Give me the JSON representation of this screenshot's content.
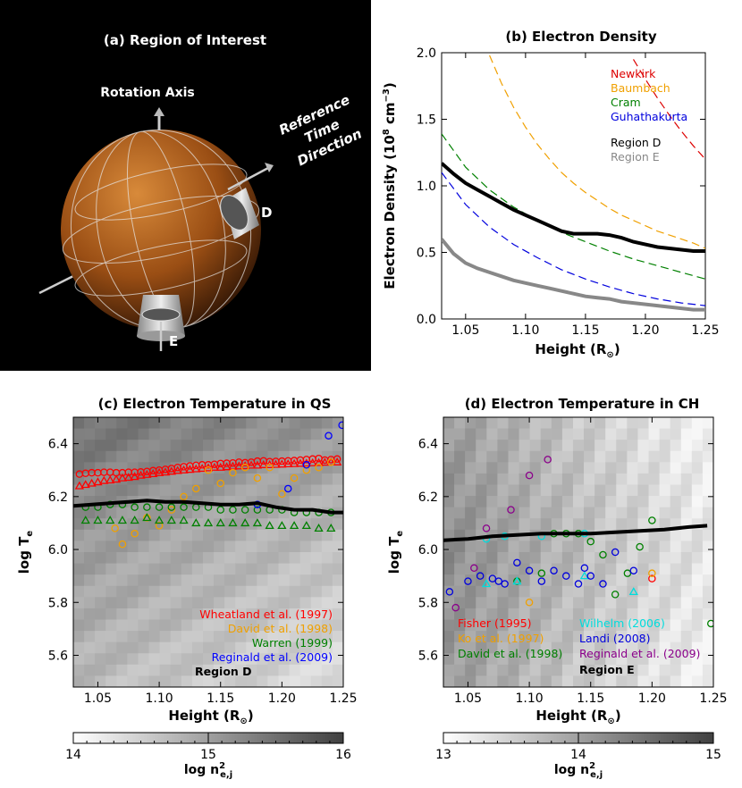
{
  "panels": {
    "a": {
      "title": "(a) Region of Interest",
      "rotation_axis": "Rotation Axis",
      "ref_dir": [
        "Reference",
        "Time",
        "Direction"
      ],
      "label_d": "D",
      "label_e": "E"
    }
  },
  "chart_data": [
    {
      "id": "b",
      "type": "line",
      "title": "(b) Electron Density",
      "xlabel": "Height (R",
      "xlabel_sub": "⊙",
      "xlabel_end": ")",
      "ylabel": "Electron Density (10",
      "ylabel_sup1": "8",
      "ylabel_mid": " cm",
      "ylabel_sup2": "−3",
      "ylabel_end": ")",
      "xlim": [
        1.03,
        1.25
      ],
      "ylim": [
        0.0,
        2.0
      ],
      "xticks": [
        "1.05",
        "1.10",
        "1.15",
        "1.20",
        "1.25"
      ],
      "yticks": [
        "0.0",
        "0.5",
        "1.0",
        "1.5",
        "2.0"
      ],
      "series": [
        {
          "name": "Newkirk",
          "color": "#dd0000",
          "dash": true,
          "x": [
            1.19,
            1.2,
            1.21,
            1.22,
            1.23,
            1.24,
            1.25
          ],
          "y": [
            1.95,
            1.8,
            1.66,
            1.53,
            1.41,
            1.3,
            1.2
          ]
        },
        {
          "name": "Baumbach",
          "color": "#f0a000",
          "dash": true,
          "x": [
            1.07,
            1.08,
            1.09,
            1.1,
            1.11,
            1.12,
            1.13,
            1.14,
            1.15,
            1.16,
            1.17,
            1.18,
            1.19,
            1.2,
            1.21,
            1.22,
            1.23,
            1.24,
            1.25
          ],
          "y": [
            1.98,
            1.77,
            1.59,
            1.44,
            1.31,
            1.2,
            1.1,
            1.02,
            0.95,
            0.89,
            0.83,
            0.78,
            0.74,
            0.7,
            0.66,
            0.63,
            0.6,
            0.57,
            0.53
          ]
        },
        {
          "name": "Cram",
          "color": "#008000",
          "dash": true,
          "x": [
            1.03,
            1.05,
            1.07,
            1.09,
            1.11,
            1.13,
            1.15,
            1.17,
            1.19,
            1.21,
            1.23,
            1.25
          ],
          "y": [
            1.39,
            1.14,
            0.97,
            0.84,
            0.74,
            0.65,
            0.58,
            0.51,
            0.45,
            0.4,
            0.35,
            0.3
          ]
        },
        {
          "name": "Guhathakurta",
          "color": "#0000dd",
          "dash": true,
          "x": [
            1.03,
            1.05,
            1.07,
            1.09,
            1.11,
            1.13,
            1.15,
            1.17,
            1.19,
            1.21,
            1.23,
            1.25
          ],
          "y": [
            1.1,
            0.86,
            0.69,
            0.56,
            0.46,
            0.37,
            0.3,
            0.24,
            0.19,
            0.15,
            0.12,
            0.1
          ]
        },
        {
          "name": "Region D",
          "color": "#000000",
          "dash": false,
          "width": 4,
          "x": [
            1.03,
            1.04,
            1.05,
            1.06,
            1.07,
            1.08,
            1.09,
            1.1,
            1.11,
            1.12,
            1.13,
            1.14,
            1.15,
            1.16,
            1.17,
            1.18,
            1.19,
            1.2,
            1.21,
            1.22,
            1.23,
            1.24,
            1.25
          ],
          "y": [
            1.17,
            1.09,
            1.02,
            0.97,
            0.92,
            0.87,
            0.82,
            0.78,
            0.74,
            0.7,
            0.66,
            0.64,
            0.64,
            0.64,
            0.63,
            0.61,
            0.58,
            0.56,
            0.54,
            0.53,
            0.52,
            0.51,
            0.51
          ]
        },
        {
          "name": "Region E",
          "color": "#888888",
          "dash": false,
          "width": 4,
          "x": [
            1.03,
            1.04,
            1.05,
            1.06,
            1.07,
            1.08,
            1.09,
            1.1,
            1.11,
            1.12,
            1.13,
            1.14,
            1.15,
            1.16,
            1.17,
            1.18,
            1.19,
            1.2,
            1.21,
            1.22,
            1.23,
            1.24,
            1.25
          ],
          "y": [
            0.6,
            0.49,
            0.42,
            0.38,
            0.35,
            0.32,
            0.29,
            0.27,
            0.25,
            0.23,
            0.21,
            0.19,
            0.17,
            0.16,
            0.15,
            0.13,
            0.12,
            0.11,
            0.1,
            0.09,
            0.08,
            0.07,
            0.07
          ]
        }
      ]
    },
    {
      "id": "c",
      "type": "scatter",
      "title": "(c) Electron Temperature in QS",
      "xlabel": "Height (R",
      "xlabel_sub": "⊙",
      "xlabel_end": ")",
      "ylabel": "log T",
      "ylabel_sub": "e",
      "xlim": [
        1.03,
        1.25
      ],
      "ylim": [
        5.48,
        6.5
      ],
      "xticks": [
        "1.05",
        "1.10",
        "1.15",
        "1.20",
        "1.25"
      ],
      "yticks": [
        "5.6",
        "5.8",
        "6.0",
        "6.2",
        "6.4"
      ],
      "series": [
        {
          "name": "Wheatland et al. (1997)",
          "color": "#ff0000",
          "marker": "circle",
          "x": [
            1.035,
            1.04,
            1.045,
            1.05,
            1.055,
            1.06,
            1.065,
            1.07,
            1.075,
            1.08,
            1.085,
            1.09,
            1.095,
            1.1,
            1.105,
            1.11,
            1.115,
            1.12,
            1.125,
            1.13,
            1.135,
            1.14,
            1.145,
            1.15,
            1.155,
            1.16,
            1.165,
            1.17,
            1.175,
            1.18,
            1.185,
            1.19,
            1.195,
            1.2,
            1.205,
            1.21,
            1.215,
            1.22,
            1.225,
            1.23,
            1.235,
            1.24,
            1.245
          ],
          "y": [
            6.285,
            6.288,
            6.29,
            6.29,
            6.292,
            6.292,
            6.29,
            6.29,
            6.292,
            6.292,
            6.293,
            6.295,
            6.298,
            6.3,
            6.303,
            6.306,
            6.31,
            6.313,
            6.316,
            6.318,
            6.32,
            6.32,
            6.322,
            6.325,
            6.326,
            6.327,
            6.33,
            6.328,
            6.33,
            6.334,
            6.335,
            6.332,
            6.333,
            6.334,
            6.335,
            6.336,
            6.338,
            6.34,
            6.342,
            6.344,
            6.338,
            6.34,
            6.342
          ]
        },
        {
          "name": "Wheatland et al. (1997) tri",
          "color": "#ff0000",
          "marker": "triangle",
          "x": [
            1.035,
            1.04,
            1.045,
            1.05,
            1.055,
            1.06,
            1.065,
            1.07,
            1.075,
            1.08,
            1.085,
            1.09,
            1.095,
            1.1,
            1.105,
            1.11,
            1.115,
            1.12,
            1.125,
            1.13,
            1.135,
            1.14,
            1.145,
            1.15,
            1.155,
            1.16,
            1.165,
            1.17,
            1.175,
            1.18,
            1.185,
            1.19,
            1.195,
            1.2,
            1.205,
            1.21,
            1.215,
            1.22,
            1.225,
            1.23,
            1.235,
            1.24,
            1.245
          ],
          "y": [
            6.24,
            6.245,
            6.25,
            6.255,
            6.26,
            6.262,
            6.265,
            6.27,
            6.272,
            6.275,
            6.28,
            6.283,
            6.286,
            6.29,
            6.292,
            6.295,
            6.298,
            6.3,
            6.302,
            6.304,
            6.306,
            6.308,
            6.31,
            6.31,
            6.312,
            6.314,
            6.315,
            6.316,
            6.318,
            6.318,
            6.32,
            6.32,
            6.321,
            6.322,
            6.323,
            6.324,
            6.325,
            6.326,
            6.327,
            6.328,
            6.329,
            6.33,
            6.33
          ]
        },
        {
          "name": "David et al. (1998)",
          "color": "#f0a000",
          "marker": "circle",
          "x": [
            1.064,
            1.07,
            1.08,
            1.09,
            1.1,
            1.11,
            1.12,
            1.13,
            1.14,
            1.15,
            1.16,
            1.17,
            1.18,
            1.19,
            1.2,
            1.21,
            1.22,
            1.23,
            1.24
          ],
          "y": [
            6.08,
            6.02,
            6.06,
            6.12,
            6.09,
            6.15,
            6.2,
            6.23,
            6.3,
            6.25,
            6.29,
            6.31,
            6.27,
            6.31,
            6.21,
            6.27,
            6.3,
            6.31,
            6.33
          ]
        },
        {
          "name": "Warren (1999)",
          "color": "#008000",
          "marker": "triangle",
          "x": [
            1.04,
            1.05,
            1.06,
            1.07,
            1.08,
            1.09,
            1.1,
            1.11,
            1.12,
            1.13,
            1.14,
            1.15,
            1.16,
            1.17,
            1.18,
            1.19,
            1.2,
            1.21,
            1.22,
            1.23,
            1.24
          ],
          "y": [
            6.11,
            6.11,
            6.11,
            6.11,
            6.11,
            6.12,
            6.11,
            6.11,
            6.11,
            6.1,
            6.1,
            6.1,
            6.1,
            6.1,
            6.1,
            6.09,
            6.09,
            6.09,
            6.09,
            6.08,
            6.08
          ]
        },
        {
          "name": "Warren (1999) circ",
          "color": "#008000",
          "marker": "circle",
          "x": [
            1.04,
            1.05,
            1.06,
            1.07,
            1.08,
            1.09,
            1.1,
            1.11,
            1.12,
            1.13,
            1.14,
            1.15,
            1.16,
            1.17,
            1.18,
            1.19,
            1.2,
            1.21,
            1.22,
            1.23,
            1.24
          ],
          "y": [
            6.16,
            6.16,
            6.17,
            6.17,
            6.16,
            6.16,
            6.16,
            6.16,
            6.16,
            6.16,
            6.16,
            6.15,
            6.15,
            6.15,
            6.15,
            6.15,
            6.15,
            6.14,
            6.14,
            6.14,
            6.14
          ]
        },
        {
          "name": "Reginald et al. (2009)",
          "color": "#0000ff",
          "marker": "circle",
          "x": [
            1.18,
            1.205,
            1.22,
            1.238,
            1.249
          ],
          "y": [
            6.17,
            6.23,
            6.32,
            6.43,
            6.47
          ]
        },
        {
          "name": "Region D",
          "color": "#000000",
          "marker": "line",
          "x": [
            1.03,
            1.045,
            1.06,
            1.075,
            1.09,
            1.105,
            1.12,
            1.135,
            1.15,
            1.165,
            1.18,
            1.195,
            1.21,
            1.225,
            1.24,
            1.25
          ],
          "y": [
            6.165,
            6.17,
            6.175,
            6.18,
            6.185,
            6.18,
            6.18,
            6.175,
            6.17,
            6.17,
            6.175,
            6.16,
            6.15,
            6.15,
            6.14,
            6.14
          ]
        }
      ],
      "colorbar": {
        "ticks": [
          "14",
          "15",
          "16"
        ],
        "label": "log n",
        "label_sup": "2",
        "label_sub": "e,j",
        "from": "#ffffff",
        "to": "#404040"
      }
    },
    {
      "id": "d",
      "type": "scatter",
      "title": "(d) Electron Temperature in CH",
      "xlabel": "Height (R",
      "xlabel_sub": "⊙",
      "xlabel_end": ")",
      "ylabel": "log T",
      "ylabel_sub": "e",
      "xlim": [
        1.03,
        1.25
      ],
      "ylim": [
        5.48,
        6.5
      ],
      "xticks": [
        "1.05",
        "1.10",
        "1.15",
        "1.20",
        "1.25"
      ],
      "yticks": [
        "5.6",
        "5.8",
        "6.0",
        "6.2",
        "6.4"
      ],
      "series": [
        {
          "name": "Fisher (1995)",
          "color": "#ff0000",
          "marker": "circle",
          "x": [
            1.2
          ],
          "y": [
            5.89
          ]
        },
        {
          "name": "Ko et al. (1997)",
          "color": "#f0a000",
          "marker": "circle",
          "x": [
            1.1,
            1.2
          ],
          "y": [
            5.8,
            5.91
          ]
        },
        {
          "name": "David et al. (1998)",
          "color": "#008000",
          "marker": "circle",
          "x": [
            1.09,
            1.11,
            1.12,
            1.13,
            1.14,
            1.15,
            1.16,
            1.17,
            1.18,
            1.19,
            1.2,
            1.248
          ],
          "y": [
            5.88,
            5.91,
            6.06,
            6.06,
            6.06,
            6.03,
            5.98,
            5.83,
            5.91,
            6.01,
            6.11,
            5.72
          ]
        },
        {
          "name": "Wilhelm (2006)",
          "color": "#00dddd",
          "marker": "circle",
          "x": [
            1.065,
            1.08,
            1.11,
            1.145
          ],
          "y": [
            6.04,
            6.05,
            6.05,
            6.06
          ]
        },
        {
          "name": "Wilhelm (2006) tri",
          "color": "#00dddd",
          "marker": "triangle",
          "x": [
            1.065,
            1.09,
            1.145,
            1.185
          ],
          "y": [
            5.87,
            5.88,
            5.9,
            5.84
          ]
        },
        {
          "name": "Landi (2008)",
          "color": "#0000dd",
          "marker": "circle",
          "x": [
            1.035,
            1.05,
            1.06,
            1.07,
            1.075,
            1.08,
            1.09,
            1.1,
            1.11,
            1.12,
            1.13,
            1.14,
            1.145,
            1.15,
            1.16,
            1.17,
            1.185
          ],
          "y": [
            5.84,
            5.88,
            5.9,
            5.89,
            5.88,
            5.87,
            5.95,
            5.92,
            5.88,
            5.92,
            5.9,
            5.87,
            5.93,
            5.9,
            5.87,
            5.99,
            5.92
          ]
        },
        {
          "name": "Reginald et al. (2009)",
          "color": "#8b008b",
          "marker": "circle",
          "x": [
            1.04,
            1.055,
            1.065,
            1.085,
            1.1,
            1.115
          ],
          "y": [
            5.78,
            5.93,
            6.08,
            6.15,
            6.28,
            6.34
          ]
        },
        {
          "name": "Region E",
          "color": "#000000",
          "marker": "line",
          "x": [
            1.03,
            1.05,
            1.07,
            1.09,
            1.11,
            1.13,
            1.15,
            1.17,
            1.19,
            1.21,
            1.23,
            1.245
          ],
          "y": [
            6.035,
            6.04,
            6.05,
            6.055,
            6.06,
            6.06,
            6.06,
            6.065,
            6.07,
            6.075,
            6.085,
            6.09
          ]
        }
      ],
      "legend_text": {
        "fisher": "Fisher (1995)",
        "ko": "Ko et al. (1997)",
        "david": "David et al. (1998)",
        "wilhelm": "Wilhelm (2006)",
        "landi": "Landi (2008)",
        "reginald": "Reginald et al. (2009)",
        "region": "Region E"
      },
      "colorbar": {
        "ticks": [
          "13",
          "14",
          "15"
        ],
        "label": "log n",
        "label_sup": "2",
        "label_sub": "e,j",
        "from": "#ffffff",
        "to": "#404040"
      }
    }
  ],
  "legend_b": [
    "Newkirk",
    "Baumbach",
    "Cram",
    "Guhathakurta",
    "Region D",
    "Region E"
  ],
  "legend_c": [
    "Wheatland et al. (1997)",
    "David et al. (1998)",
    "Warren (1999)",
    "Reginald et al. (2009)",
    "Region D"
  ]
}
